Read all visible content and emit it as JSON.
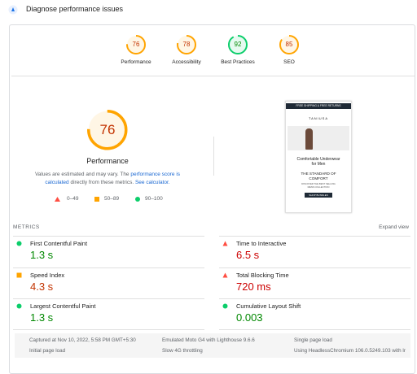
{
  "header": {
    "title": "Diagnose performance issues"
  },
  "categories": [
    {
      "score": 76,
      "label": "Performance",
      "color": "#ffa400",
      "text_color": "#c33300"
    },
    {
      "score": 78,
      "label": "Accessibility",
      "color": "#ffa400",
      "text_color": "#c33300"
    },
    {
      "score": 92,
      "label": "Best Practices",
      "color": "#0cce6b",
      "text_color": "#008800"
    },
    {
      "score": 85,
      "label": "SEO",
      "color": "#ffa400",
      "text_color": "#c33300"
    }
  ],
  "main_gauge": {
    "score": 76,
    "label": "Performance",
    "color": "#ffa400",
    "text_color": "#c33300"
  },
  "description": {
    "part1": "Values are estimated and may vary. The ",
    "link1": "performance score is calculated",
    "part2": " directly from these metrics. ",
    "link2": "See calculator."
  },
  "legend": [
    "0–49",
    "50–89",
    "90–100"
  ],
  "screenshot": {
    "banner": "FREE SHIPPING & FREE RETURNS",
    "brand": "TANIUSA",
    "heading": "Comfortable Underwear for Men",
    "subheading": "THE STANDARD OF COMFORT",
    "tagline": "DISCOVER THE BEST SELLING MENS COLLECTION",
    "button": "SHOP BUNDLES"
  },
  "metrics": {
    "title": "METRICS",
    "expand": "Expand view",
    "items": [
      {
        "name": "First Contentful Paint",
        "value": "1.3 s",
        "rating": "pass"
      },
      {
        "name": "Time to Interactive",
        "value": "6.5 s",
        "rating": "fail"
      },
      {
        "name": "Speed Index",
        "value": "4.3 s",
        "rating": "average"
      },
      {
        "name": "Total Blocking Time",
        "value": "720 ms",
        "rating": "fail"
      },
      {
        "name": "Largest Contentful Paint",
        "value": "1.3 s",
        "rating": "pass"
      },
      {
        "name": "Cumulative Layout Shift",
        "value": "0.003",
        "rating": "pass"
      }
    ]
  },
  "footer": [
    "Captured at Nov 10, 2022, 5:58 PM GMT+5:30",
    "Emulated Moto G4 with Lighthouse 9.6.6",
    "Single page load",
    "Initial page load",
    "Slow 4G throttling",
    "Using HeadlessChromium 106.0.5249.103 with lr"
  ]
}
